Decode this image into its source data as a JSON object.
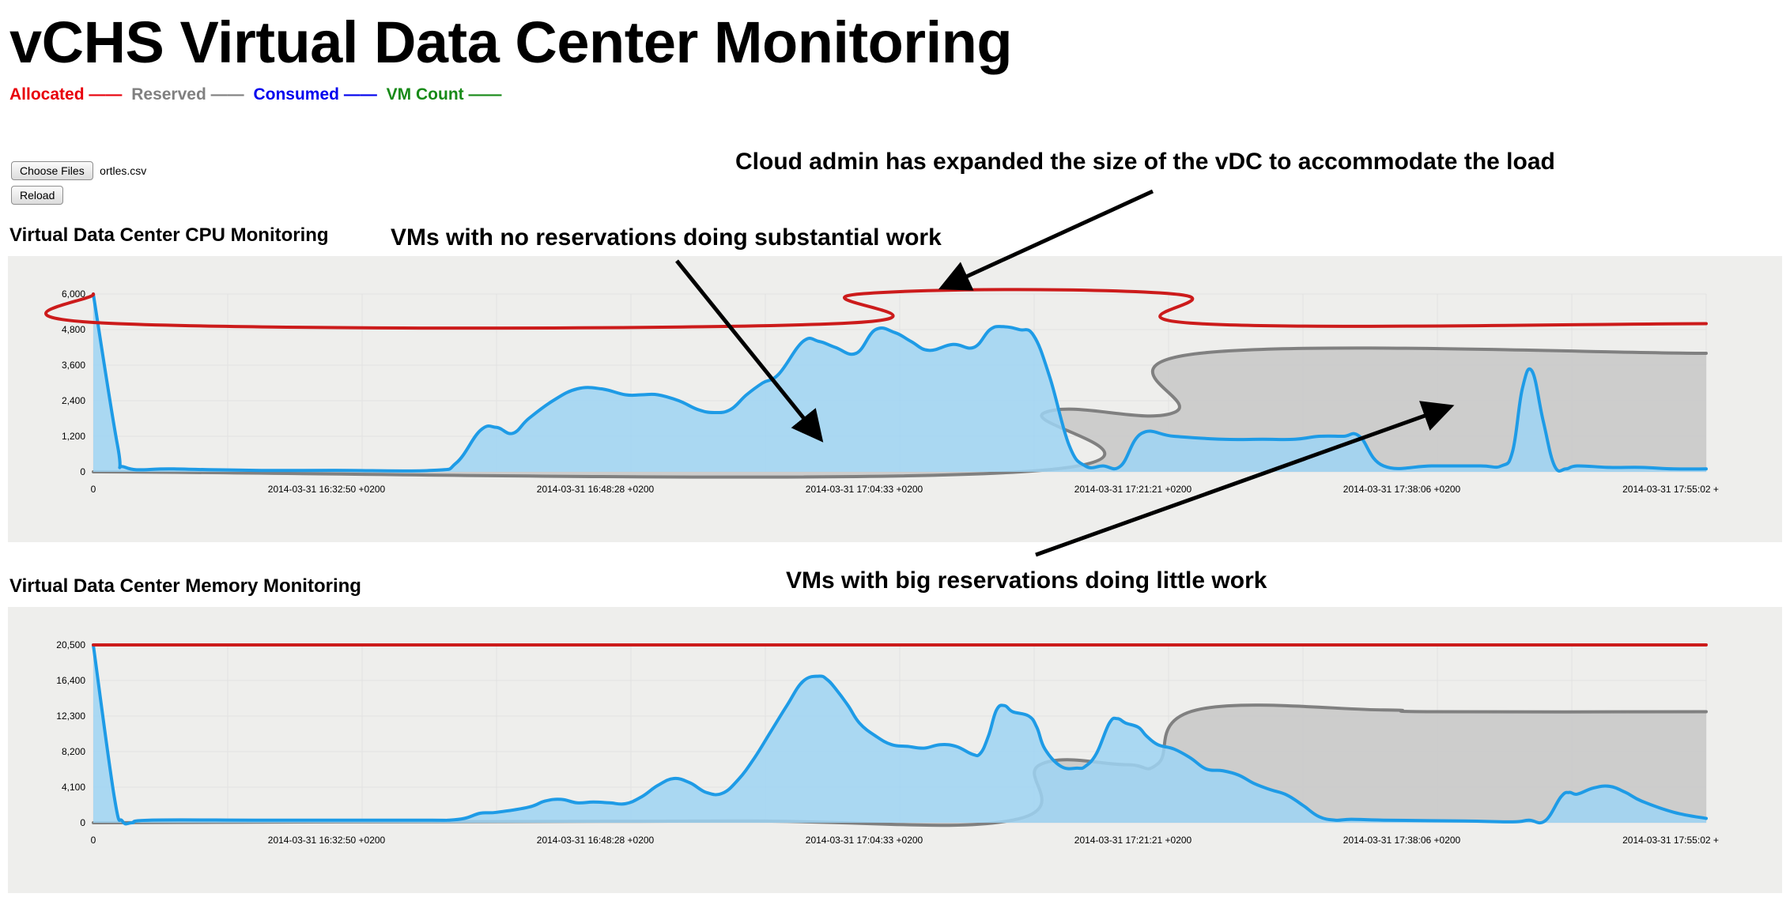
{
  "page": {
    "title": "vCHS Virtual Data Center Monitoring"
  },
  "legend": [
    {
      "label": "Allocated",
      "swatch": "——",
      "color": "#e8000b"
    },
    {
      "label": "Reserved",
      "swatch": "——",
      "color": "#808080"
    },
    {
      "label": "Consumed",
      "swatch": "——",
      "color": "#0000ee"
    },
    {
      "label": "VM Count",
      "swatch": "——",
      "color": "#178a17"
    }
  ],
  "file_input": {
    "button_label": "Choose Files",
    "file_name": "ortles.csv",
    "reload_label": "Reload"
  },
  "colors": {
    "allocated": "#cc1b1b",
    "reserved": "#808080",
    "reserved_fill": "#cacaca",
    "consumed": "#1e9be6",
    "consumed_fill": "#9dd3f3",
    "panel_bg": "#eeeeec",
    "grid": "#e2e2e2"
  },
  "annotations": {
    "expanded": "Cloud admin has expanded the size of the vDC to accommodate the load",
    "no_reservations": "VMs with no reservations doing substantial work",
    "big_reservations": "VMs with big reservations doing little work"
  },
  "chart_data": [
    {
      "type": "area",
      "title": "Virtual Data Center CPU Monitoring",
      "x_axis": "time",
      "x_ticks": [
        "0",
        "2014-03-31 16:32:50 +0200",
        "2014-03-31 16:48:28 +0200",
        "2014-03-31 17:04:33 +0200",
        "2014-03-31 17:21:21 +0200",
        "2014-03-31 17:38:06 +0200",
        "2014-03-31 17:55:02 +"
      ],
      "y_ticks": [
        "6,000",
        "4,800",
        "3,600",
        "2,400",
        "1,200",
        "0"
      ],
      "ylim": [
        0,
        6000
      ],
      "xlim": [
        0,
        100
      ],
      "grid": true,
      "series": [
        {
          "name": "Allocated",
          "color": "#cc1b1b",
          "fill": false,
          "x": [
            0,
            1.5,
            46,
            47.5,
            67,
            68.6,
            100
          ],
          "y": [
            6000,
            5000,
            5000,
            6000,
            6000,
            5000,
            5000
          ]
        },
        {
          "name": "Reserved",
          "color": "#808080",
          "fill": true,
          "x": [
            0,
            57.5,
            59,
            67,
            68.6,
            100
          ],
          "y": [
            0,
            0,
            2000,
            2000,
            4000,
            4000
          ]
        },
        {
          "name": "Consumed",
          "color": "#1e9be6",
          "fill": true,
          "x": [
            0,
            1.5,
            2,
            5,
            10,
            15,
            21,
            22.5,
            24,
            25,
            26,
            27,
            28.5,
            30,
            31.5,
            33,
            34,
            35,
            36.3,
            37.5,
            38.5,
            39.5,
            40.5,
            41.5,
            42.5,
            44,
            45,
            46,
            47.3,
            48.5,
            49.7,
            50.7,
            51.8,
            53.3,
            54.6,
            55.6,
            56.4,
            57.4,
            58.3,
            59.3,
            60.5,
            61.5,
            62.6,
            63.7,
            65,
            67,
            70,
            72.5,
            74.5,
            76,
            77.5,
            78.5,
            80,
            83,
            86,
            87.3,
            88,
            88.6,
            89.2,
            89.9,
            90.6,
            91.3,
            92,
            94,
            96,
            98,
            100
          ],
          "y": [
            6000,
            900,
            150,
            100,
            50,
            50,
            50,
            300,
            1400,
            1500,
            1300,
            1800,
            2400,
            2800,
            2800,
            2600,
            2600,
            2600,
            2400,
            2100,
            2000,
            2100,
            2600,
            3000,
            3300,
            4400,
            4400,
            4200,
            4000,
            4800,
            4700,
            4400,
            4100,
            4300,
            4200,
            4800,
            4900,
            4800,
            4600,
            3200,
            900,
            200,
            200,
            200,
            1300,
            1200,
            1100,
            1100,
            1100,
            1200,
            1200,
            1200,
            200,
            200,
            200,
            200,
            700,
            2800,
            3400,
            1700,
            200,
            100,
            200,
            150,
            150,
            100,
            100
          ]
        }
      ]
    },
    {
      "type": "area",
      "title": "Virtual Data Center Memory Monitoring",
      "x_axis": "time",
      "x_ticks": [
        "0",
        "2014-03-31 16:32:50 +0200",
        "2014-03-31 16:48:28 +0200",
        "2014-03-31 17:04:33 +0200",
        "2014-03-31 17:21:21 +0200",
        "2014-03-31 17:38:06 +0200",
        "2014-03-31 17:55:02 +"
      ],
      "y_ticks": [
        "20,500",
        "16,400",
        "12,300",
        "8,200",
        "4,100",
        "0"
      ],
      "ylim": [
        0,
        20500
      ],
      "xlim": [
        0,
        100
      ],
      "grid": true,
      "series": [
        {
          "name": "Allocated",
          "color": "#cc1b1b",
          "fill": false,
          "x": [
            0,
            100
          ],
          "y": [
            20500,
            20500
          ]
        },
        {
          "name": "Reserved",
          "color": "#808080",
          "fill": true,
          "x": [
            0,
            15,
            40,
            57,
            58.7,
            64,
            66,
            68.4,
            80,
            83,
            100
          ],
          "y": [
            0,
            100,
            200,
            300,
            6700,
            6700,
            6800,
            13000,
            13000,
            12800,
            12800
          ]
        },
        {
          "name": "Consumed",
          "color": "#1e9be6",
          "fill": true,
          "x": [
            0,
            1.3,
            1.8,
            2.4,
            3.5,
            10,
            15,
            21,
            22,
            23,
            24,
            25,
            27,
            28,
            29,
            30,
            31,
            32,
            33,
            34,
            35,
            36,
            37,
            38,
            39,
            40,
            41,
            42,
            43,
            44,
            45,
            45.5,
            46,
            46.8,
            47.5,
            48.5,
            49.5,
            50.5,
            51.5,
            52.5,
            53.5,
            54.5,
            55,
            55.5,
            56,
            56.5,
            57,
            58,
            58.5,
            59,
            60,
            61,
            61.5,
            62.2,
            63,
            63.5,
            64,
            64.8,
            65.3,
            66,
            67,
            68,
            69,
            70,
            71,
            72,
            73,
            74,
            75,
            76,
            77,
            78,
            80,
            85,
            88,
            89,
            90,
            91,
            91.5,
            92,
            93,
            94,
            95,
            96,
            98,
            100
          ],
          "y": [
            20500,
            3000,
            200,
            0,
            300,
            300,
            300,
            300,
            300,
            500,
            1100,
            1200,
            1800,
            2500,
            2700,
            2300,
            2400,
            2300,
            2200,
            3000,
            4300,
            5100,
            4600,
            3500,
            3400,
            5000,
            7500,
            10500,
            13500,
            16300,
            16900,
            16500,
            15500,
            13500,
            11500,
            10000,
            9000,
            8800,
            8600,
            9000,
            8800,
            7900,
            8000,
            10000,
            13000,
            13500,
            12800,
            12300,
            11000,
            8500,
            6500,
            6300,
            6500,
            8000,
            11500,
            12000,
            11500,
            11000,
            10000,
            9000,
            8500,
            7500,
            6200,
            6000,
            5500,
            4500,
            3800,
            3200,
            2000,
            700,
            300,
            400,
            300,
            200,
            100,
            300,
            200,
            3000,
            3500,
            3300,
            4000,
            4200,
            3500,
            2500,
            1200,
            500
          ]
        }
      ]
    }
  ]
}
